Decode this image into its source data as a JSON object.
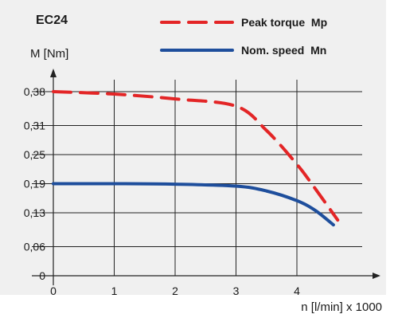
{
  "chart_data": {
    "type": "line",
    "title": "EC24",
    "xlabel": "n [l/min] x 1000",
    "ylabel": "M [Nm]",
    "xlim": [
      0,
      5.2
    ],
    "ylim": [
      0,
      0.41
    ],
    "x_ticks": [
      0,
      1,
      2,
      3,
      4
    ],
    "x_tick_labels": [
      "0",
      "1",
      "2",
      "3",
      "4"
    ],
    "y_ticks": [
      0,
      0.06,
      0.13,
      0.19,
      0.25,
      0.31,
      0.38
    ],
    "y_tick_labels": [
      "0",
      "0,06",
      "0,13",
      "0,19",
      "0,25",
      "0,31",
      "0,38"
    ],
    "grid": {
      "horizontal": true,
      "vertical": true
    },
    "legend_position": "top-right",
    "series": [
      {
        "name": "Peak torque  Mp",
        "color": "#e32526",
        "style": "dashed",
        "x": [
          0,
          1,
          2,
          3,
          3.5,
          4,
          4.3,
          4.67
        ],
        "y": [
          0.38,
          0.375,
          0.365,
          0.35,
          0.3,
          0.23,
          0.18,
          0.115
        ]
      },
      {
        "name": "Nom. speed  Mn",
        "color": "#1e4e9c",
        "style": "solid",
        "x": [
          0,
          1,
          2,
          3,
          3.5,
          4,
          4.3,
          4.6
        ],
        "y": [
          0.19,
          0.19,
          0.189,
          0.185,
          0.175,
          0.155,
          0.135,
          0.105
        ]
      }
    ]
  }
}
